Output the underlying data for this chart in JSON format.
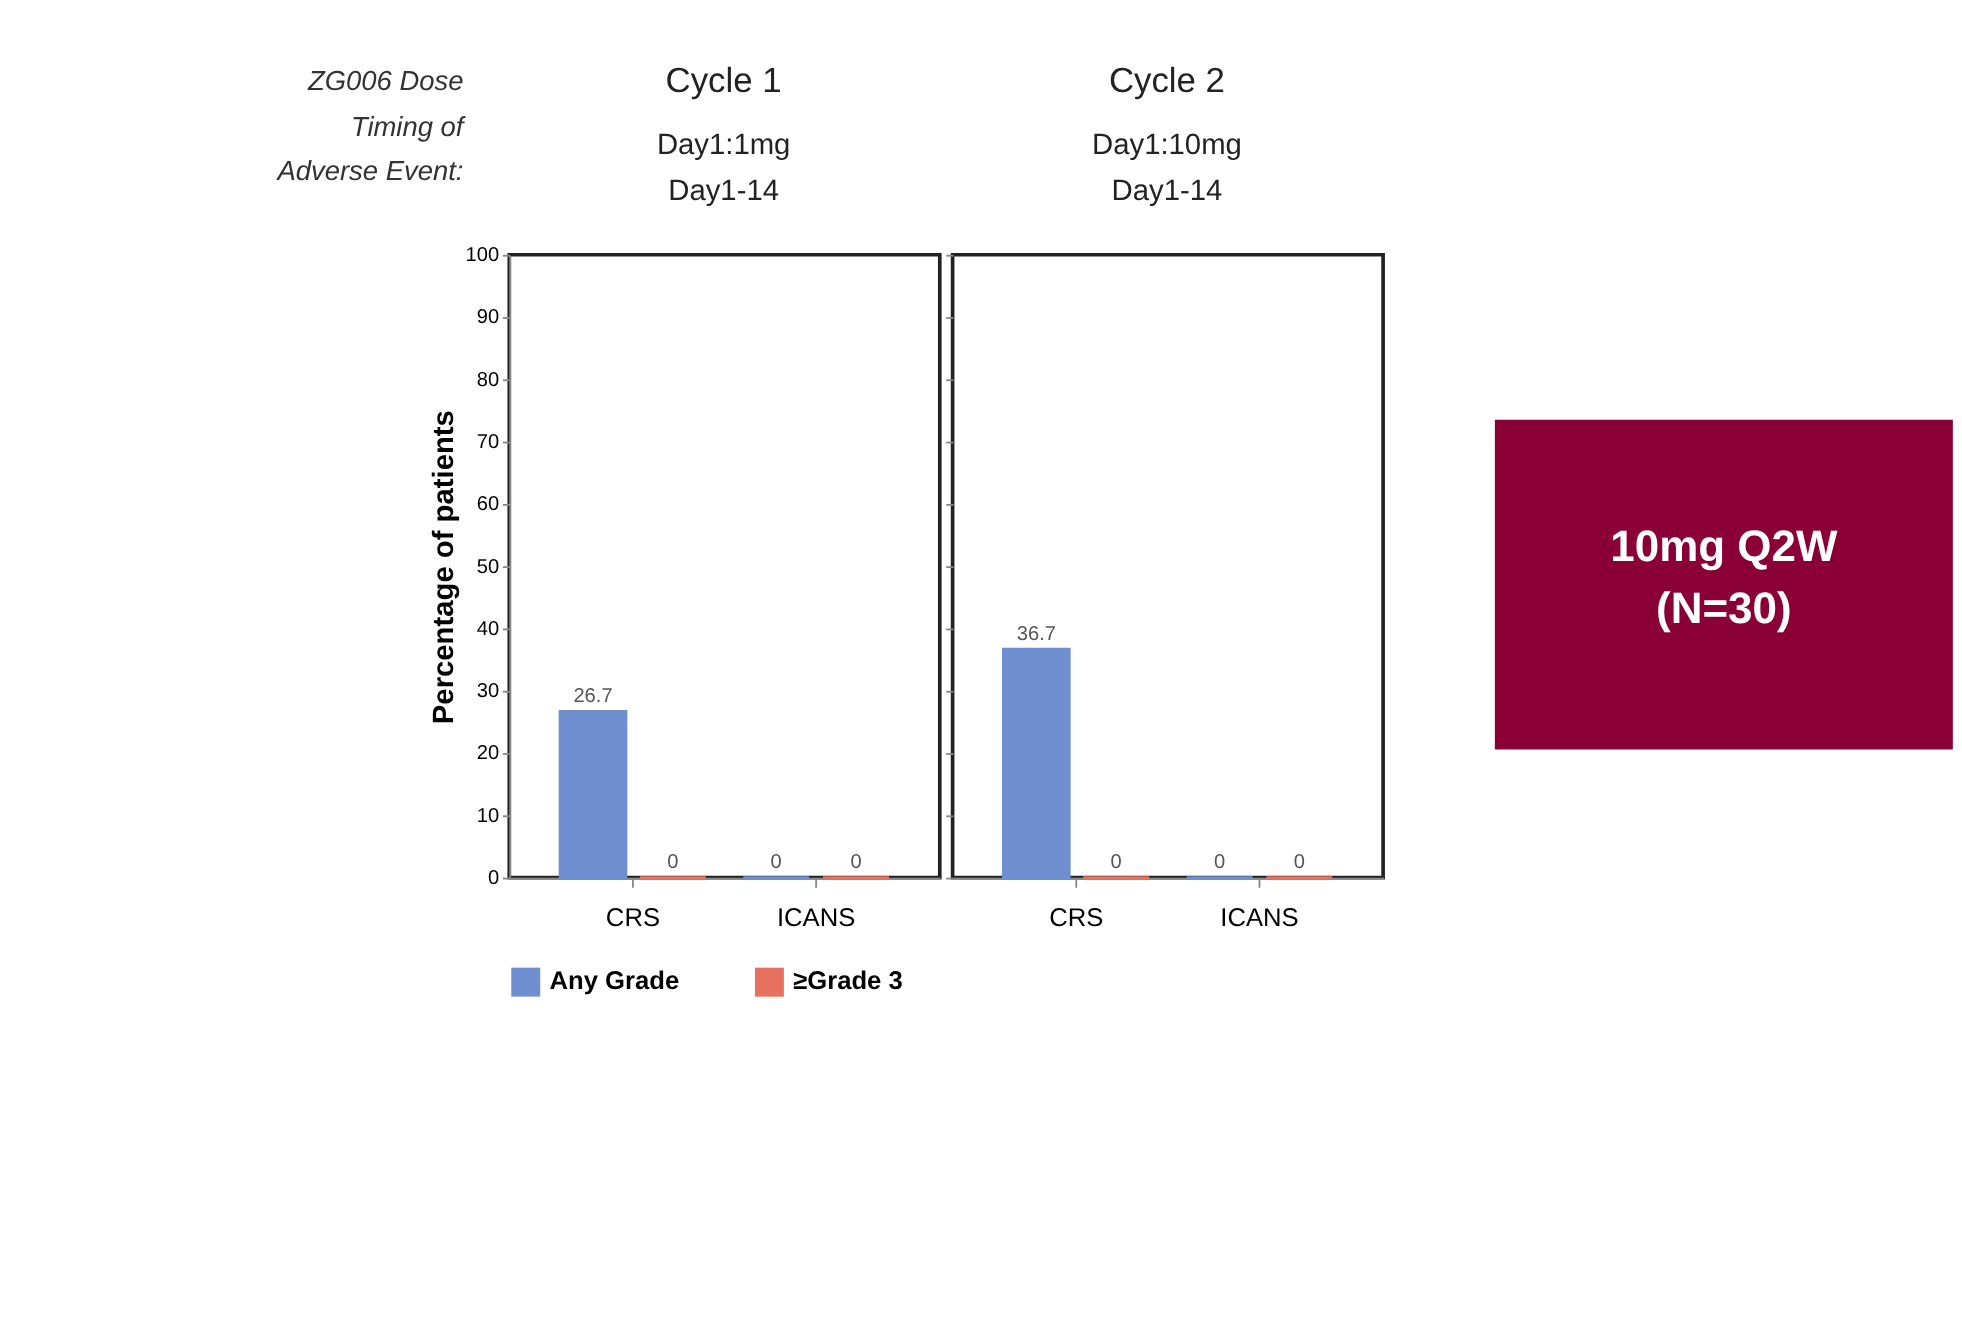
{
  "chart_data": [
    {
      "type": "bar",
      "title": "Cycle 1",
      "subtitle": "Day1:1mg\nDay1-14",
      "annotations": [
        "ZG006 Dose",
        "Timing of",
        "Adverse Event:"
      ],
      "ylabel": "Percentage of patients",
      "categories": [
        "CRS",
        "ICANS"
      ],
      "series": [
        {
          "name": "Any Grade",
          "color": "#6f8fd0",
          "values": [
            26.7,
            0
          ]
        },
        {
          "name": "≥Grade 3",
          "color": "#e8705f",
          "values": [
            0,
            0
          ]
        }
      ],
      "ylim": [
        0,
        100
      ],
      "yticks": [
        0,
        10,
        20,
        30,
        40,
        50,
        60,
        70,
        80,
        90,
        100
      ],
      "data_labels": true,
      "legend": "bottom"
    },
    {
      "type": "bar",
      "title": "Cycle 2",
      "subtitle": "Day1:10mg\nDay1-14",
      "categories": [
        "CRS",
        "ICANS"
      ],
      "series": [
        {
          "name": "Any Grade",
          "color": "#6f8fd0",
          "values": [
            36.7,
            0
          ]
        },
        {
          "name": "≥Grade 3",
          "color": "#e8705f",
          "values": [
            0,
            0
          ]
        }
      ],
      "ylim": [
        0,
        100
      ],
      "yticks": [
        0,
        10,
        20,
        30,
        40,
        50,
        60,
        70,
        80,
        90,
        100
      ],
      "tick_labels": "x",
      "data_labels": true,
      "legend": "bottom"
    },
    {
      "type": "other",
      "color": "#8a0036",
      "annotations": [
        "10mg Q2W",
        "(N=30)"
      ]
    }
  ]
}
